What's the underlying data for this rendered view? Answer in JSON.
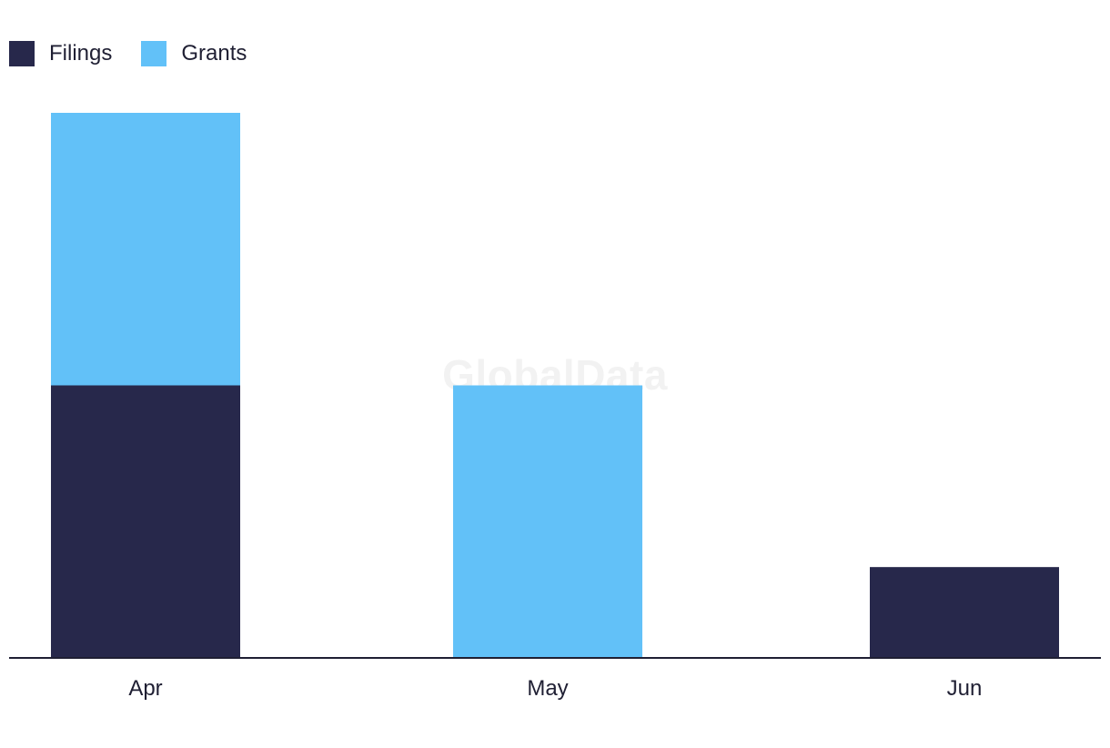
{
  "chart_data": {
    "type": "bar",
    "stacked": true,
    "categories": [
      "Apr",
      "May",
      "Jun"
    ],
    "series": [
      {
        "name": "Filings",
        "values": [
          3,
          0,
          1
        ],
        "color": "#27284b"
      },
      {
        "name": "Grants",
        "values": [
          3,
          3,
          0
        ],
        "color": "#62c1f8"
      }
    ],
    "title": "",
    "xlabel": "",
    "ylabel": "",
    "ylim": [
      0,
      6
    ],
    "grid": false,
    "legend_position": "top-left"
  },
  "watermark": "GlobalData"
}
